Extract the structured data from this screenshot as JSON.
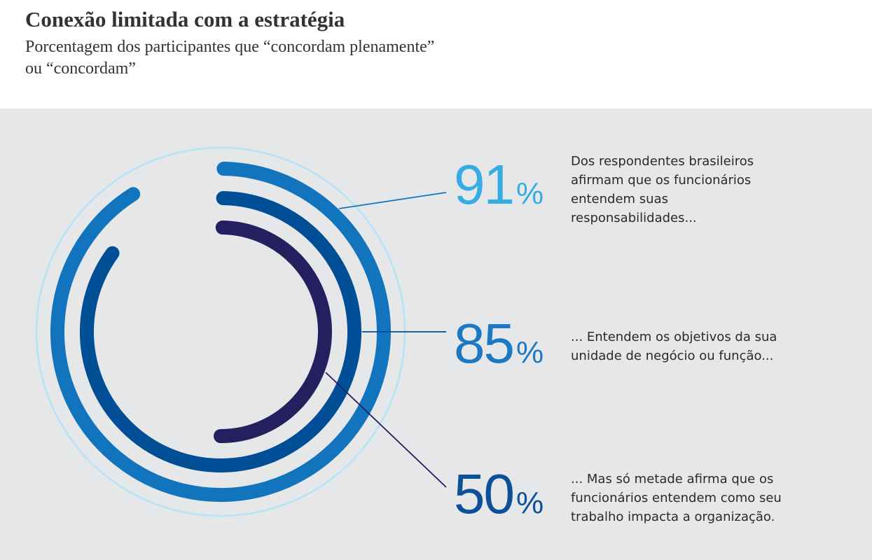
{
  "title": "Conexão limitada com a estratégia",
  "subtitle": "Porcentagem dos participantes que “concordam plenamente”\nou “concordam”",
  "chart_data": {
    "type": "radial-bar",
    "unit": "%",
    "max": 100,
    "series": [
      {
        "value": 91,
        "label": "91",
        "color": "#1174bc",
        "description": "Dos respondentes brasileiros\nafirmam que os funcionários\nentendem suas\nresponsabilidades..."
      },
      {
        "value": 85,
        "label": "85",
        "color": "#004e96",
        "description": "... Entendem os objetivos da sua\nunidade de negócio ou função..."
      },
      {
        "value": 50,
        "label": "50",
        "color": "#261f5f",
        "description": "... Mas só metade afirma que os\nfuncionários entendem como seu\ntrabalho impacta a organização."
      }
    ],
    "label_colors": [
      "#35ace2",
      "#1c78c2",
      "#0d509a"
    ],
    "outline_color": "#b5e3f8",
    "background": "#e6e7e9"
  }
}
